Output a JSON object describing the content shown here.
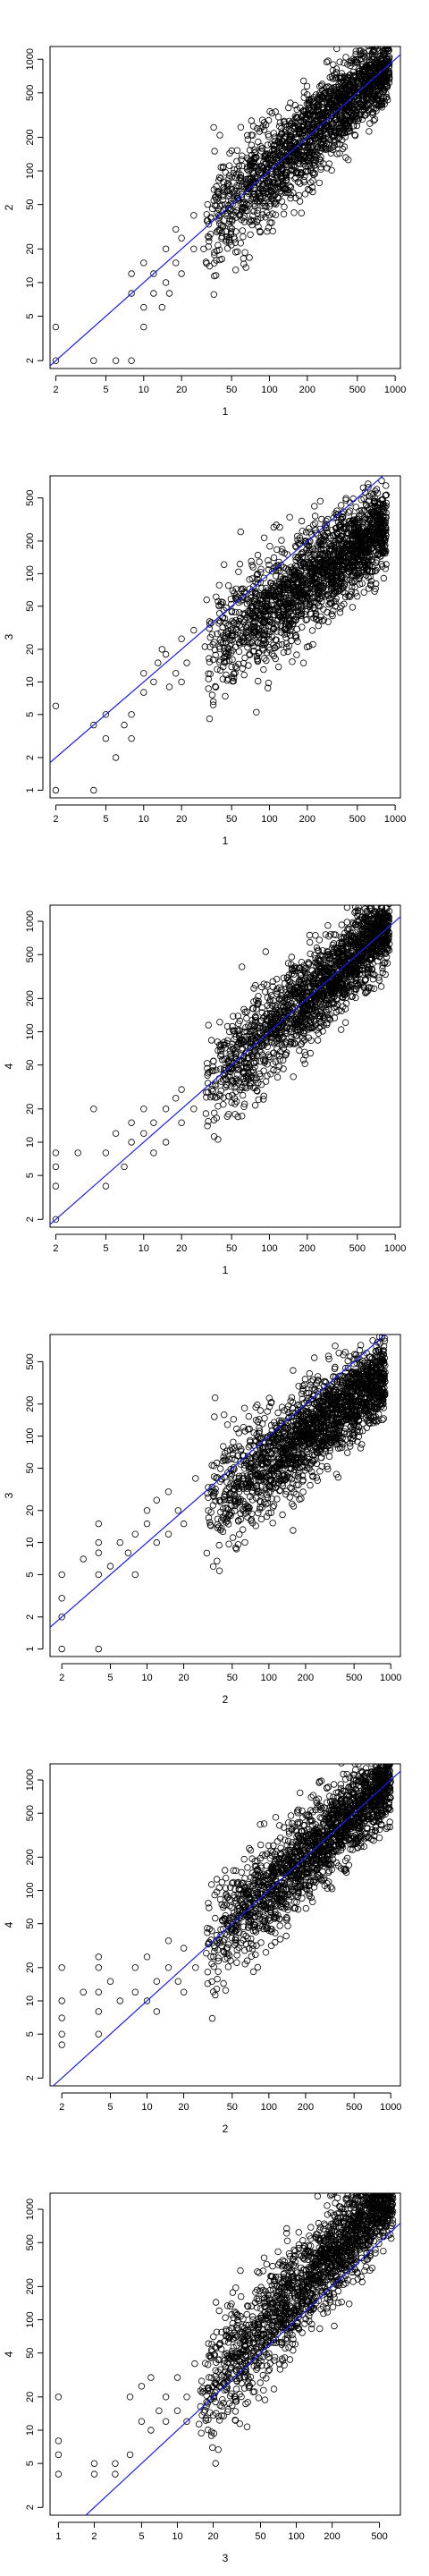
{
  "chart_data": [
    {
      "type": "scatter",
      "xlabel": "1",
      "ylabel": "2",
      "x_scale": "log",
      "y_scale": "log",
      "xlim": [
        1.8,
        1100
      ],
      "ylim": [
        1.7,
        1300
      ],
      "x_ticks": [
        2,
        5,
        10,
        20,
        50,
        100,
        200,
        500,
        1000
      ],
      "y_ticks": [
        2,
        5,
        10,
        20,
        50,
        100,
        200,
        500,
        1000
      ],
      "reference_line": {
        "type": "y=x",
        "color": "#1a1aff"
      },
      "series": [
        {
          "cloud": {
            "x_range": [
              30,
              900
            ],
            "slope": 1.0,
            "spread": 0.25
          },
          "points": [
            [
              2,
              2
            ],
            [
              2,
              4
            ],
            [
              4,
              2
            ],
            [
              6,
              2
            ],
            [
              8,
              2
            ],
            [
              10,
              4
            ],
            [
              8,
              8
            ],
            [
              10,
              6
            ],
            [
              12,
              8
            ],
            [
              12,
              12
            ],
            [
              15,
              10
            ],
            [
              15,
              20
            ],
            [
              18,
              15
            ],
            [
              20,
              25
            ],
            [
              25,
              20
            ],
            [
              8,
              12
            ],
            [
              10,
              15
            ],
            [
              14,
              6
            ],
            [
              16,
              8
            ],
            [
              20,
              12
            ],
            [
              25,
              40
            ],
            [
              30,
              20
            ],
            [
              18,
              30
            ]
          ]
        }
      ]
    },
    {
      "type": "scatter",
      "xlabel": "1",
      "ylabel": "3",
      "x_scale": "log",
      "y_scale": "log",
      "xlim": [
        1.8,
        1100
      ],
      "ylim": [
        0.85,
        800
      ],
      "x_ticks": [
        2,
        5,
        10,
        20,
        50,
        100,
        200,
        500,
        1000
      ],
      "y_ticks": [
        1,
        2,
        5,
        10,
        20,
        50,
        100,
        200,
        500
      ],
      "reference_line": {
        "type": "y=x",
        "color": "#1a1aff"
      },
      "series": [
        {
          "cloud": {
            "x_range": [
              30,
              850
            ],
            "slope": 0.8,
            "spread": 0.28
          },
          "points": [
            [
              2,
              6
            ],
            [
              2,
              1
            ],
            [
              4,
              1
            ],
            [
              4,
              4
            ],
            [
              5,
              3
            ],
            [
              5,
              5
            ],
            [
              6,
              2
            ],
            [
              7,
              4
            ],
            [
              8,
              3
            ],
            [
              8,
              5
            ],
            [
              10,
              8
            ],
            [
              10,
              12
            ],
            [
              12,
              10
            ],
            [
              13,
              15
            ],
            [
              15,
              18
            ],
            [
              18,
              12
            ],
            [
              20,
              25
            ],
            [
              20,
              10
            ],
            [
              25,
              30
            ],
            [
              14,
              20
            ],
            [
              16,
              9
            ],
            [
              22,
              15
            ]
          ]
        }
      ]
    },
    {
      "type": "scatter",
      "xlabel": "1",
      "ylabel": "4",
      "x_scale": "log",
      "y_scale": "log",
      "xlim": [
        1.8,
        1100
      ],
      "ylim": [
        1.7,
        1400
      ],
      "x_ticks": [
        2,
        5,
        10,
        20,
        50,
        100,
        200,
        500,
        1000
      ],
      "y_ticks": [
        2,
        5,
        10,
        20,
        50,
        100,
        200,
        500,
        1000
      ],
      "reference_line": {
        "type": "y=x",
        "color": "#1a1aff"
      },
      "series": [
        {
          "cloud": {
            "x_range": [
              30,
              900
            ],
            "slope": 1.0,
            "spread": 0.25
          },
          "points": [
            [
              2,
              2
            ],
            [
              2,
              4
            ],
            [
              2,
              6
            ],
            [
              2,
              8
            ],
            [
              4,
              20
            ],
            [
              5,
              8
            ],
            [
              5,
              4
            ],
            [
              6,
              12
            ],
            [
              7,
              6
            ],
            [
              8,
              10
            ],
            [
              8,
              15
            ],
            [
              10,
              12
            ],
            [
              10,
              20
            ],
            [
              12,
              8
            ],
            [
              12,
              15
            ],
            [
              15,
              10
            ],
            [
              15,
              20
            ],
            [
              18,
              25
            ],
            [
              20,
              15
            ],
            [
              20,
              30
            ],
            [
              25,
              20
            ],
            [
              3,
              8
            ]
          ]
        }
      ]
    },
    {
      "type": "scatter",
      "xlabel": "2",
      "ylabel": "3",
      "x_scale": "log",
      "y_scale": "log",
      "xlim": [
        1.6,
        1200
      ],
      "ylim": [
        0.85,
        900
      ],
      "x_ticks": [
        2,
        5,
        10,
        20,
        50,
        100,
        200,
        500,
        1000
      ],
      "y_ticks": [
        1,
        2,
        5,
        10,
        20,
        50,
        100,
        200,
        500
      ],
      "reference_line": {
        "type": "y=x",
        "color": "#1a1aff"
      },
      "series": [
        {
          "cloud": {
            "x_range": [
              30,
              900
            ],
            "slope": 0.85,
            "spread": 0.28
          },
          "points": [
            [
              2,
              1
            ],
            [
              2,
              2
            ],
            [
              2,
              3
            ],
            [
              2,
              5
            ],
            [
              4,
              1
            ],
            [
              4,
              5
            ],
            [
              4,
              8
            ],
            [
              4,
              10
            ],
            [
              4,
              15
            ],
            [
              5,
              6
            ],
            [
              6,
              10
            ],
            [
              7,
              8
            ],
            [
              8,
              5
            ],
            [
              8,
              12
            ],
            [
              10,
              15
            ],
            [
              10,
              20
            ],
            [
              12,
              10
            ],
            [
              12,
              25
            ],
            [
              15,
              12
            ],
            [
              15,
              30
            ],
            [
              18,
              20
            ],
            [
              20,
              15
            ],
            [
              25,
              40
            ],
            [
              3,
              7
            ]
          ]
        }
      ]
    },
    {
      "type": "scatter",
      "xlabel": "2",
      "ylabel": "4",
      "x_scale": "log",
      "y_scale": "log",
      "xlim": [
        1.6,
        1200
      ],
      "ylim": [
        1.7,
        1400
      ],
      "x_ticks": [
        2,
        5,
        10,
        20,
        50,
        100,
        200,
        500,
        1000
      ],
      "y_ticks": [
        2,
        5,
        10,
        20,
        50,
        100,
        200,
        500,
        1000
      ],
      "reference_line": {
        "type": "y=x",
        "color": "#1a1aff"
      },
      "series": [
        {
          "cloud": {
            "x_range": [
              30,
              1000
            ],
            "slope": 1.0,
            "spread": 0.25
          },
          "points": [
            [
              2,
              4
            ],
            [
              2,
              5
            ],
            [
              2,
              7
            ],
            [
              2,
              10
            ],
            [
              2,
              20
            ],
            [
              4,
              5
            ],
            [
              4,
              8
            ],
            [
              4,
              12
            ],
            [
              4,
              20
            ],
            [
              4,
              25
            ],
            [
              5,
              15
            ],
            [
              6,
              10
            ],
            [
              8,
              12
            ],
            [
              8,
              20
            ],
            [
              10,
              10
            ],
            [
              10,
              25
            ],
            [
              12,
              8
            ],
            [
              12,
              15
            ],
            [
              15,
              20
            ],
            [
              15,
              35
            ],
            [
              18,
              15
            ],
            [
              20,
              30
            ],
            [
              20,
              12
            ],
            [
              25,
              20
            ],
            [
              3,
              12
            ]
          ]
        }
      ]
    },
    {
      "type": "scatter",
      "xlabel": "3",
      "ylabel": "4",
      "x_scale": "log",
      "y_scale": "log",
      "xlim": [
        0.85,
        750
      ],
      "ylim": [
        1.7,
        1400
      ],
      "x_ticks": [
        1,
        2,
        5,
        10,
        20,
        50,
        100,
        200,
        500
      ],
      "y_ticks": [
        2,
        5,
        10,
        20,
        50,
        100,
        200,
        500,
        1000
      ],
      "reference_line": {
        "type": "y=x",
        "color": "#1a1aff"
      },
      "series": [
        {
          "cloud": {
            "x_range": [
              15,
              650
            ],
            "slope": 1.15,
            "spread": 0.28
          },
          "points": [
            [
              1,
              4
            ],
            [
              1,
              6
            ],
            [
              1,
              8
            ],
            [
              1,
              20
            ],
            [
              2,
              4
            ],
            [
              2,
              5
            ],
            [
              3,
              5
            ],
            [
              4,
              6
            ],
            [
              4,
              20
            ],
            [
              5,
              12
            ],
            [
              5,
              25
            ],
            [
              6,
              10
            ],
            [
              7,
              15
            ],
            [
              8,
              12
            ],
            [
              8,
              20
            ],
            [
              10,
              15
            ],
            [
              10,
              30
            ],
            [
              12,
              20
            ],
            [
              12,
              12
            ],
            [
              14,
              40
            ],
            [
              3,
              4
            ],
            [
              6,
              30
            ]
          ]
        }
      ]
    }
  ]
}
